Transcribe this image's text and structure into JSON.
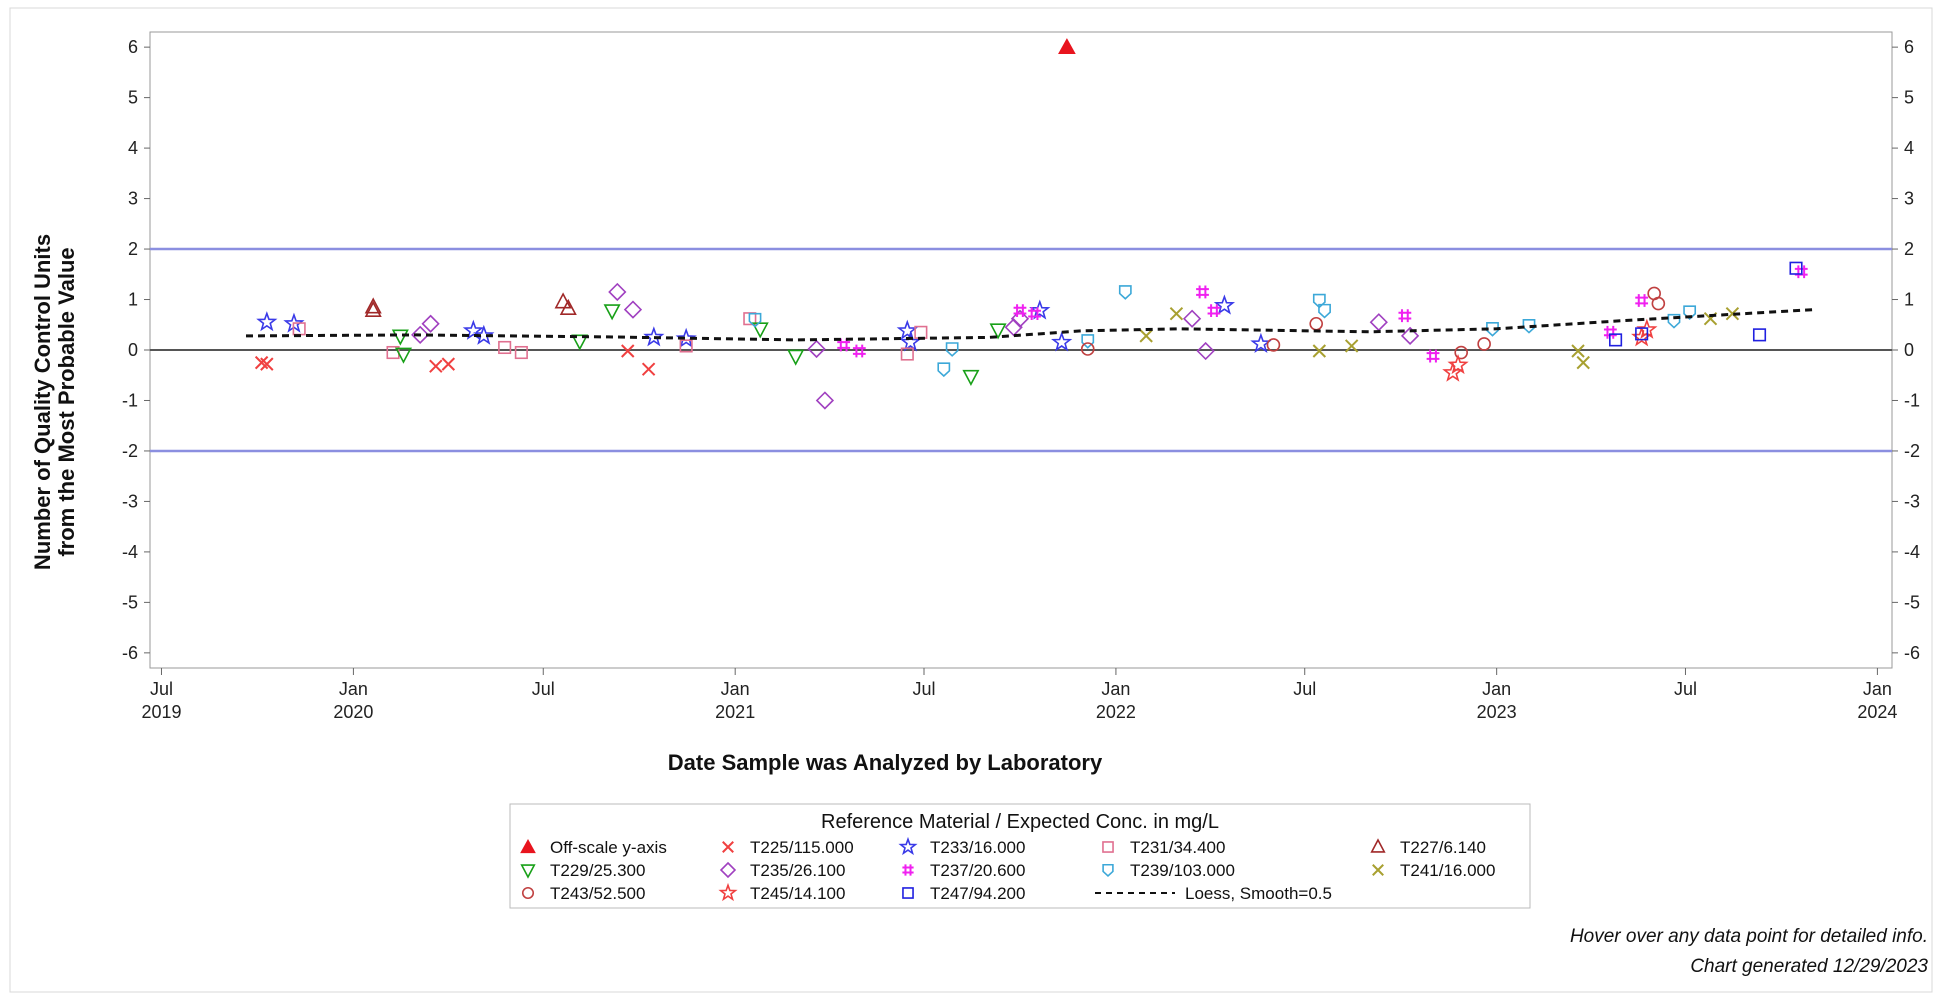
{
  "chart_data": {
    "type": "scatter",
    "title": "",
    "xlabel": "Date Sample was Analyzed by Laboratory",
    "ylabel_lines": [
      "Number of Quality Control Units",
      "from the Most Probable Value"
    ],
    "ylim": [
      -6.3,
      6.3
    ],
    "xlim": [
      "2019-06-20",
      "2024-01-15"
    ],
    "y_ticks": [
      -6,
      -5,
      -4,
      -3,
      -2,
      -1,
      0,
      1,
      2,
      3,
      4,
      5,
      6
    ],
    "y_tick_labels": [
      "-6",
      "-5",
      "-4",
      "-3",
      "-2",
      "-1",
      "0",
      "1",
      "2",
      "3",
      "4",
      "5",
      "6"
    ],
    "x_ticks": [
      {
        "date": "2019-07-01",
        "line1": "Jul",
        "line2": "2019"
      },
      {
        "date": "2020-01-01",
        "line1": "Jan",
        "line2": "2020"
      },
      {
        "date": "2020-07-01",
        "line1": "Jul",
        "line2": ""
      },
      {
        "date": "2021-01-01",
        "line1": "Jan",
        "line2": "2021"
      },
      {
        "date": "2021-07-01",
        "line1": "Jul",
        "line2": ""
      },
      {
        "date": "2022-01-01",
        "line1": "Jan",
        "line2": "2022"
      },
      {
        "date": "2022-07-01",
        "line1": "Jul",
        "line2": ""
      },
      {
        "date": "2023-01-01",
        "line1": "Jan",
        "line2": "2023"
      },
      {
        "date": "2023-07-01",
        "line1": "Jul",
        "line2": ""
      },
      {
        "date": "2024-01-01",
        "line1": "Jan",
        "line2": "2024"
      }
    ],
    "reference_lines": [
      {
        "y": 2,
        "color": "#8b8fe0"
      },
      {
        "y": -2,
        "color": "#8b8fe0"
      },
      {
        "y": 0,
        "color": "#555555"
      }
    ],
    "grid": false,
    "legend_position": "bottom",
    "legend_title": "Reference Material / Expected Conc. in mg/L",
    "series": [
      {
        "name": "Off-scale y-axis",
        "marker": "triangle-filled",
        "color": "#e8141e",
        "points": [
          [
            "2021-11-15",
            6
          ]
        ]
      },
      {
        "name": "T225/115.000",
        "marker": "x",
        "color": "#f04040",
        "points": [
          [
            "2019-10-05",
            -0.25
          ],
          [
            "2019-10-10",
            -0.28
          ],
          [
            "2020-03-20",
            -0.32
          ],
          [
            "2020-04-01",
            -0.28
          ],
          [
            "2020-09-20",
            -0.02
          ],
          [
            "2020-10-10",
            -0.38
          ]
        ]
      },
      {
        "name": "T233/16.000",
        "marker": "star",
        "color": "#3a3ae8",
        "points": [
          [
            "2019-10-10",
            0.55
          ],
          [
            "2019-11-05",
            0.52
          ],
          [
            "2020-04-25",
            0.38
          ],
          [
            "2020-05-05",
            0.28
          ],
          [
            "2020-10-15",
            0.25
          ],
          [
            "2020-11-15",
            0.22
          ],
          [
            "2021-06-15",
            0.38
          ],
          [
            "2021-06-18",
            0.15
          ],
          [
            "2021-10-20",
            0.78
          ],
          [
            "2021-11-10",
            0.15
          ],
          [
            "2022-04-15",
            0.88
          ],
          [
            "2022-05-20",
            0.12
          ]
        ]
      },
      {
        "name": "T231/34.400",
        "marker": "square",
        "color": "#e07090",
        "points": [
          [
            "2019-11-10",
            0.42
          ],
          [
            "2020-02-08",
            -0.05
          ],
          [
            "2020-05-25",
            0.05
          ],
          [
            "2020-06-10",
            -0.05
          ],
          [
            "2020-11-15",
            0.08
          ],
          [
            "2021-01-15",
            0.62
          ],
          [
            "2021-06-15",
            -0.08
          ],
          [
            "2021-06-28",
            0.35
          ]
        ]
      },
      {
        "name": "T227/6.140",
        "marker": "triangle",
        "color": "#a02828",
        "points": [
          [
            "2020-01-20",
            0.85
          ],
          [
            "2020-01-20",
            0.78
          ],
          [
            "2020-07-20",
            0.95
          ],
          [
            "2020-07-25",
            0.82
          ]
        ]
      },
      {
        "name": "T229/25.300",
        "marker": "triangle-down",
        "color": "#18a018",
        "points": [
          [
            "2020-02-15",
            0.28
          ],
          [
            "2020-02-18",
            -0.08
          ],
          [
            "2020-08-05",
            0.18
          ],
          [
            "2020-09-05",
            0.78
          ],
          [
            "2021-01-25",
            0.42
          ],
          [
            "2021-02-28",
            -0.12
          ],
          [
            "2021-08-15",
            -0.52
          ],
          [
            "2021-09-10",
            0.4
          ]
        ]
      },
      {
        "name": "T235/26.100",
        "marker": "diamond",
        "color": "#a040c0",
        "points": [
          [
            "2020-03-05",
            0.3
          ],
          [
            "2020-03-15",
            0.52
          ],
          [
            "2020-09-10",
            1.15
          ],
          [
            "2020-09-25",
            0.8
          ],
          [
            "2021-03-20",
            0.02
          ],
          [
            "2021-03-28",
            -1.0
          ],
          [
            "2021-09-25",
            0.45
          ],
          [
            "2021-10-01",
            0.62
          ],
          [
            "2022-03-15",
            0.62
          ],
          [
            "2022-03-28",
            -0.02
          ],
          [
            "2022-09-10",
            0.55
          ],
          [
            "2022-10-10",
            0.28
          ]
        ]
      },
      {
        "name": "T237/20.600",
        "marker": "asterisk",
        "color": "#f020f0",
        "points": [
          [
            "2021-04-15",
            0.1
          ],
          [
            "2021-04-30",
            -0.02
          ],
          [
            "2021-10-01",
            0.78
          ],
          [
            "2021-10-15",
            0.72
          ],
          [
            "2022-03-25",
            1.15
          ],
          [
            "2022-04-05",
            0.78
          ],
          [
            "2022-10-05",
            0.68
          ],
          [
            "2022-11-01",
            -0.12
          ],
          [
            "2023-04-20",
            0.35
          ],
          [
            "2023-05-20",
            0.98
          ],
          [
            "2023-10-20",
            1.55
          ]
        ]
      },
      {
        "name": "T239/103.000",
        "marker": "shield",
        "color": "#3ca8d8",
        "points": [
          [
            "2021-01-20",
            0.6
          ],
          [
            "2021-07-20",
            -0.38
          ],
          [
            "2021-07-28",
            0.02
          ],
          [
            "2021-12-05",
            0.18
          ],
          [
            "2022-01-10",
            1.15
          ],
          [
            "2022-07-15",
            0.98
          ],
          [
            "2022-07-20",
            0.78
          ],
          [
            "2022-12-28",
            0.42
          ],
          [
            "2023-02-01",
            0.48
          ],
          [
            "2023-06-20",
            0.58
          ],
          [
            "2023-07-05",
            0.75
          ]
        ]
      },
      {
        "name": "T241/16.000",
        "marker": "x",
        "color": "#a8a030",
        "points": [
          [
            "2022-01-30",
            0.28
          ],
          [
            "2022-02-28",
            0.72
          ],
          [
            "2022-07-15",
            -0.02
          ],
          [
            "2022-08-15",
            0.08
          ],
          [
            "2023-03-20",
            -0.02
          ],
          [
            "2023-03-25",
            -0.25
          ],
          [
            "2023-07-25",
            0.62
          ],
          [
            "2023-08-15",
            0.72
          ]
        ]
      },
      {
        "name": "T243/52.500",
        "marker": "circle",
        "color": "#c04040",
        "points": [
          [
            "2021-12-05",
            0.02
          ],
          [
            "2022-06-01",
            0.1
          ],
          [
            "2022-07-12",
            0.52
          ],
          [
            "2022-11-28",
            -0.05
          ],
          [
            "2022-12-20",
            0.12
          ],
          [
            "2023-06-01",
            1.12
          ],
          [
            "2023-06-05",
            0.92
          ]
        ]
      },
      {
        "name": "T245/14.100",
        "marker": "star",
        "color": "#f04040",
        "points": [
          [
            "2022-11-20",
            -0.45
          ],
          [
            "2022-11-25",
            -0.3
          ],
          [
            "2023-05-20",
            0.25
          ],
          [
            "2023-05-25",
            0.4
          ]
        ]
      },
      {
        "name": "T247/94.200",
        "marker": "square",
        "color": "#2020e0",
        "points": [
          [
            "2023-04-25",
            0.2
          ],
          [
            "2023-05-20",
            0.32
          ],
          [
            "2023-09-10",
            0.3
          ],
          [
            "2023-10-15",
            1.62
          ]
        ]
      },
      {
        "name": "Loess, Smooth=0.5",
        "marker": "line-dashed",
        "color": "#111111",
        "points": [
          [
            "2019-09-20",
            0.28
          ],
          [
            "2020-03-01",
            0.3
          ],
          [
            "2020-09-01",
            0.26
          ],
          [
            "2021-03-01",
            0.2
          ],
          [
            "2021-09-01",
            0.25
          ],
          [
            "2021-11-30",
            0.38
          ],
          [
            "2022-03-01",
            0.42
          ],
          [
            "2022-09-01",
            0.36
          ],
          [
            "2023-01-01",
            0.42
          ],
          [
            "2023-05-01",
            0.58
          ],
          [
            "2023-11-01",
            0.8
          ]
        ]
      }
    ]
  },
  "footer": {
    "line1": "Hover over any data point for detailed info.",
    "line2": "Chart generated 12/29/2023"
  }
}
